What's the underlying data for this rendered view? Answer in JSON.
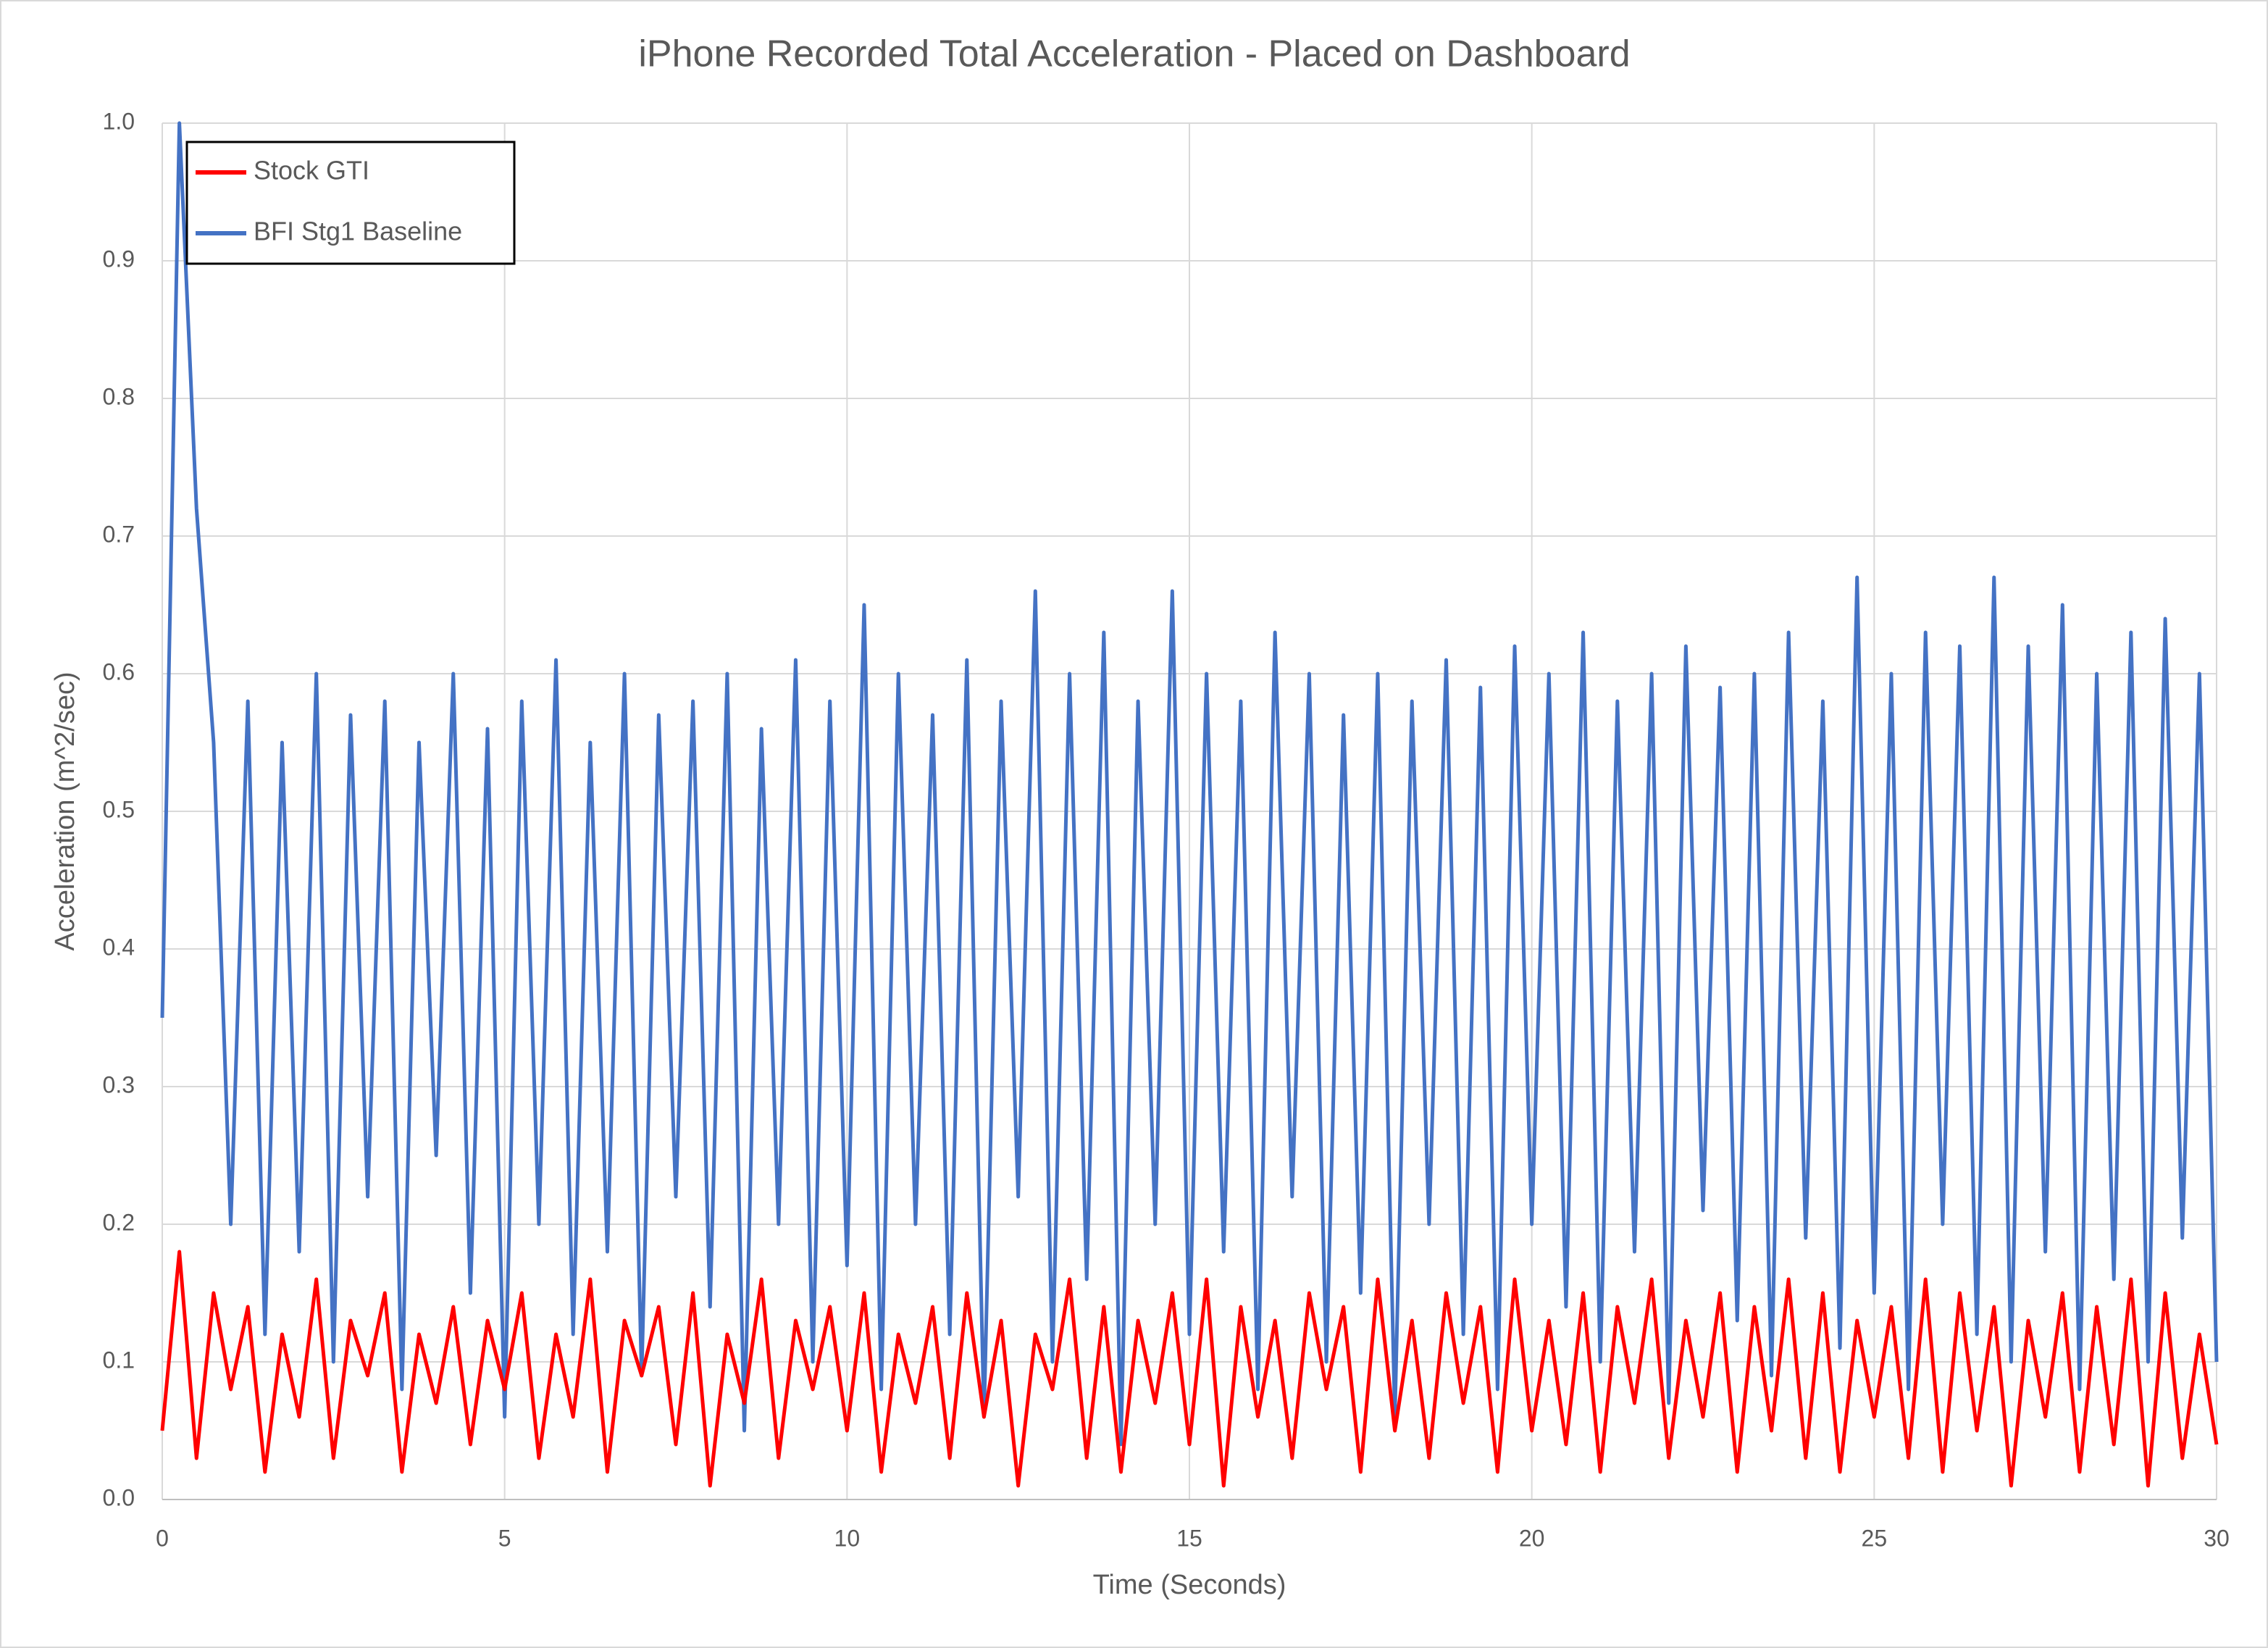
{
  "chart_data": {
    "type": "line",
    "title": "iPhone Recorded Total Acceleration - Placed on Dashboard",
    "x_label": "Time (Seconds)",
    "y_label": "Acceleration (m^2/sec)",
    "xlim": [
      0,
      30
    ],
    "xticks": [
      0,
      5,
      10,
      15,
      20,
      25,
      30
    ],
    "ylim": [
      0,
      1
    ],
    "yticks": [
      {
        "value": 0,
        "label": "0.0"
      },
      0.1,
      0.2,
      0.3,
      0.4,
      0.5,
      0.6,
      0.7,
      0.8,
      0.9,
      {
        "value": 1,
        "label": "1.0"
      }
    ],
    "grid": true,
    "legend": "top-left",
    "x": [
      0,
      0.25,
      0.5,
      0.75,
      1,
      1.25,
      1.5,
      1.75,
      2,
      2.25,
      2.5,
      2.75,
      3,
      3.25,
      3.5,
      3.75,
      4,
      4.25,
      4.5,
      4.75,
      5,
      5.25,
      5.5,
      5.75,
      6,
      6.25,
      6.5,
      6.75,
      7,
      7.25,
      7.5,
      7.75,
      8,
      8.25,
      8.5,
      8.75,
      9,
      9.25,
      9.5,
      9.75,
      10,
      10.25,
      10.5,
      10.75,
      11,
      11.25,
      11.5,
      11.75,
      12,
      12.25,
      12.5,
      12.75,
      13,
      13.25,
      13.5,
      13.75,
      14,
      14.25,
      14.5,
      14.75,
      15,
      15.25,
      15.5,
      15.75,
      16,
      16.25,
      16.5,
      16.75,
      17,
      17.25,
      17.5,
      17.75,
      18,
      18.25,
      18.5,
      18.75,
      19,
      19.25,
      19.5,
      19.75,
      20,
      20.25,
      20.5,
      20.75,
      21,
      21.25,
      21.5,
      21.75,
      22,
      22.25,
      22.5,
      22.75,
      23,
      23.25,
      23.5,
      23.75,
      24,
      24.25,
      24.5,
      24.75,
      25,
      25.25,
      25.5,
      25.75,
      26,
      26.25,
      26.5,
      26.75,
      27,
      27.25,
      27.5,
      27.75,
      28,
      28.25,
      28.5,
      28.75,
      29,
      29.25,
      29.5,
      29.75,
      30
    ],
    "series": [
      {
        "name": "Stock GTI",
        "color": "#ff0000",
        "values": [
          0.05,
          0.18,
          0.03,
          0.15,
          0.08,
          0.14,
          0.02,
          0.12,
          0.06,
          0.16,
          0.03,
          0.13,
          0.09,
          0.15,
          0.02,
          0.12,
          0.07,
          0.14,
          0.04,
          0.13,
          0.08,
          0.15,
          0.03,
          0.12,
          0.06,
          0.16,
          0.02,
          0.13,
          0.09,
          0.14,
          0.04,
          0.15,
          0.01,
          0.12,
          0.07,
          0.16,
          0.03,
          0.13,
          0.08,
          0.14,
          0.05,
          0.15,
          0.02,
          0.12,
          0.07,
          0.14,
          0.03,
          0.15,
          0.06,
          0.13,
          0.01,
          0.12,
          0.08,
          0.16,
          0.03,
          0.14,
          0.02,
          0.13,
          0.07,
          0.15,
          0.04,
          0.16,
          0.01,
          0.14,
          0.06,
          0.13,
          0.03,
          0.15,
          0.08,
          0.14,
          0.02,
          0.16,
          0.05,
          0.13,
          0.03,
          0.15,
          0.07,
          0.14,
          0.02,
          0.16,
          0.05,
          0.13,
          0.04,
          0.15,
          0.02,
          0.14,
          0.07,
          0.16,
          0.03,
          0.13,
          0.06,
          0.15,
          0.02,
          0.14,
          0.05,
          0.16,
          0.03,
          0.15,
          0.02,
          0.13,
          0.06,
          0.14,
          0.03,
          0.16,
          0.02,
          0.15,
          0.05,
          0.14,
          0.01,
          0.13,
          0.06,
          0.15,
          0.02,
          0.14,
          0.04,
          0.16,
          0.01,
          0.15,
          0.03,
          0.12,
          0.04
        ]
      },
      {
        "name": "BFI Stg1 Baseline",
        "color": "#4472c4",
        "values": [
          0.35,
          1.0,
          0.72,
          0.55,
          0.2,
          0.58,
          0.12,
          0.55,
          0.18,
          0.6,
          0.1,
          0.57,
          0.22,
          0.58,
          0.08,
          0.55,
          0.25,
          0.6,
          0.15,
          0.56,
          0.06,
          0.58,
          0.2,
          0.61,
          0.12,
          0.55,
          0.18,
          0.6,
          0.09,
          0.57,
          0.22,
          0.58,
          0.14,
          0.6,
          0.05,
          0.56,
          0.2,
          0.61,
          0.1,
          0.58,
          0.17,
          0.65,
          0.08,
          0.6,
          0.2,
          0.57,
          0.12,
          0.61,
          0.06,
          0.58,
          0.22,
          0.66,
          0.1,
          0.6,
          0.16,
          0.63,
          0.04,
          0.58,
          0.2,
          0.66,
          0.12,
          0.6,
          0.18,
          0.58,
          0.08,
          0.63,
          0.22,
          0.6,
          0.1,
          0.57,
          0.15,
          0.6,
          0.06,
          0.58,
          0.2,
          0.61,
          0.12,
          0.59,
          0.08,
          0.62,
          0.2,
          0.6,
          0.14,
          0.63,
          0.1,
          0.58,
          0.18,
          0.6,
          0.07,
          0.62,
          0.21,
          0.59,
          0.13,
          0.6,
          0.09,
          0.63,
          0.19,
          0.58,
          0.11,
          0.67,
          0.15,
          0.6,
          0.08,
          0.63,
          0.2,
          0.62,
          0.12,
          0.67,
          0.1,
          0.62,
          0.18,
          0.65,
          0.08,
          0.6,
          0.16,
          0.63,
          0.1,
          0.64,
          0.19,
          0.6,
          0.1
        ]
      }
    ]
  }
}
